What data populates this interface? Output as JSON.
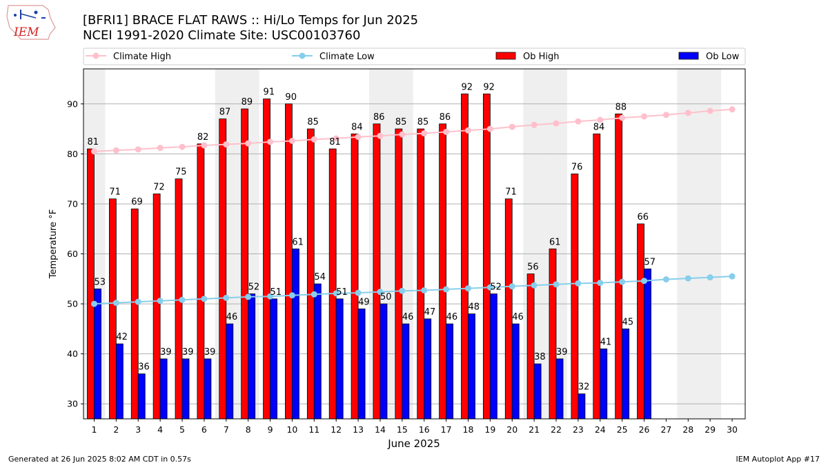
{
  "header": {
    "title_line1": "[BFRI1] BRACE FLAT RAWS :: Hi/Lo Temps for Jun 2025",
    "title_line2": "NCEI 1991-2020 Climate Site: USC00103760",
    "logo_text": "IEM"
  },
  "footer": {
    "left": "Generated at 26 Jun 2025 8:02 AM CDT in 0.57s",
    "right": "IEM Autoplot App #17"
  },
  "colors": {
    "ob_high": "#ff0000",
    "ob_low": "#0000ff",
    "climate_high": "#ffc0cb",
    "climate_low": "#87ceeb",
    "weekend_shade": "#efefef",
    "grid": "#b0b0b0"
  },
  "chart_data": {
    "type": "bar",
    "xlabel": "June 2025",
    "ylabel": "Temperature °F",
    "ylim": [
      27,
      97
    ],
    "yticks": [
      30,
      40,
      50,
      60,
      70,
      80,
      90
    ],
    "grid": "horizontal",
    "legend_placement": "top",
    "days": [
      1,
      2,
      3,
      4,
      5,
      6,
      7,
      8,
      9,
      10,
      11,
      12,
      13,
      14,
      15,
      16,
      17,
      18,
      19,
      20,
      21,
      22,
      23,
      24,
      25,
      26,
      27,
      28,
      29,
      30
    ],
    "weekend_days": [
      1,
      7,
      8,
      14,
      15,
      21,
      22,
      28,
      29
    ],
    "series": [
      {
        "name": "Climate High",
        "type": "line",
        "values": [
          80.5,
          80.7,
          80.9,
          81.2,
          81.4,
          81.7,
          81.9,
          82.1,
          82.4,
          82.6,
          82.9,
          83.1,
          83.4,
          83.6,
          83.9,
          84.1,
          84.4,
          84.7,
          85.0,
          85.4,
          85.8,
          86.1,
          86.5,
          86.8,
          87.2,
          87.5,
          87.8,
          88.2,
          88.6,
          88.9
        ]
      },
      {
        "name": "Climate Low",
        "type": "line",
        "values": [
          50.0,
          50.2,
          50.4,
          50.6,
          50.8,
          51.0,
          51.2,
          51.4,
          51.5,
          51.7,
          51.9,
          52.1,
          52.2,
          52.4,
          52.6,
          52.7,
          52.9,
          53.1,
          53.3,
          53.5,
          53.7,
          53.9,
          54.1,
          54.2,
          54.4,
          54.6,
          54.9,
          55.1,
          55.3,
          55.5
        ]
      },
      {
        "name": "Ob High",
        "type": "bar",
        "values": [
          81,
          71,
          69,
          72,
          75,
          82,
          87,
          89,
          91,
          90,
          85,
          81,
          84,
          86,
          85,
          85,
          86,
          92,
          92,
          71,
          56,
          61,
          76,
          84,
          88,
          66
        ]
      },
      {
        "name": "Ob Low",
        "type": "bar",
        "values": [
          53,
          42,
          36,
          39,
          39,
          39,
          46,
          52,
          51,
          61,
          54,
          51,
          49,
          50,
          46,
          47,
          46,
          48,
          52,
          46,
          38,
          39,
          32,
          41,
          45,
          57
        ]
      }
    ]
  }
}
